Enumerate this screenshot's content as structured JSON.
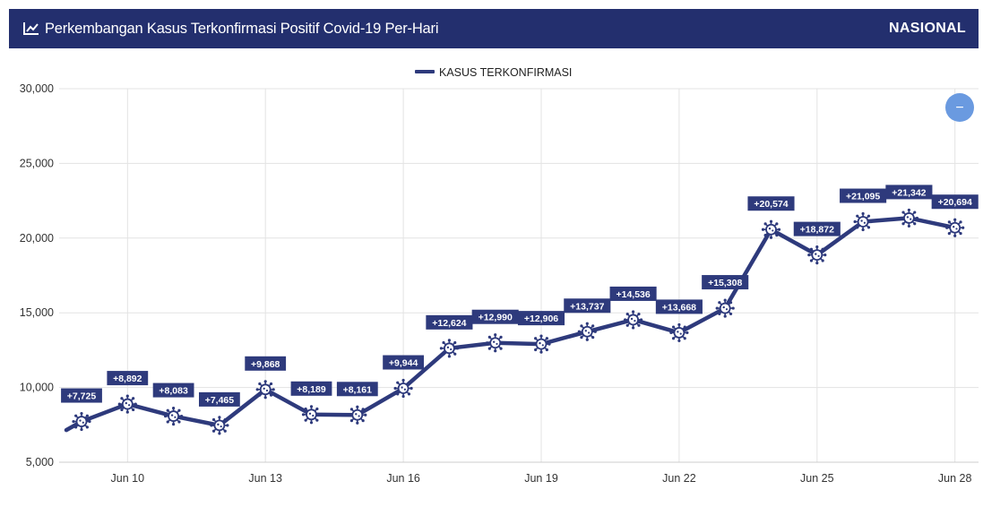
{
  "header": {
    "title": "Perkembangan Kasus Terkonfirmasi Positif Covid-19 Per-Hari",
    "region": "NASIONAL",
    "icon": "line-chart-icon"
  },
  "controls": {
    "collapse_icon": "minus-icon",
    "collapse_glyph": "−"
  },
  "colors": {
    "header_bg": "#232f6e",
    "series": "#2e3a7c",
    "label_bg": "#2e3a7c",
    "grid": "#e3e3e3",
    "button": "#6a9ae0"
  },
  "chart_data": {
    "type": "line",
    "title": "",
    "xlabel": "",
    "ylabel": "",
    "ylim": [
      5000,
      30000
    ],
    "yticks": [
      5000,
      10000,
      15000,
      20000,
      25000,
      30000
    ],
    "ytick_labels": [
      "5,000",
      "10,000",
      "15,000",
      "20,000",
      "25,000",
      "30,000"
    ],
    "x": [
      "Jun 9",
      "Jun 10",
      "Jun 11",
      "Jun 12",
      "Jun 13",
      "Jun 14",
      "Jun 15",
      "Jun 16",
      "Jun 17",
      "Jun 18",
      "Jun 19",
      "Jun 20",
      "Jun 21",
      "Jun 22",
      "Jun 23",
      "Jun 24",
      "Jun 25",
      "Jun 26",
      "Jun 27",
      "Jun 28"
    ],
    "xtick_labels": [
      "Jun 10",
      "Jun 13",
      "Jun 16",
      "Jun 19",
      "Jun 22",
      "Jun 25",
      "Jun 28"
    ],
    "grid": true,
    "legend_position": "top-center",
    "leading_value": 7150,
    "series": [
      {
        "name": "KASUS TERKONFIRMASI",
        "values": [
          7725,
          8892,
          8083,
          7465,
          9868,
          8189,
          8161,
          9944,
          12624,
          12990,
          12906,
          13737,
          14536,
          13668,
          15308,
          20574,
          18872,
          21095,
          21342,
          20694
        ],
        "labels": [
          "+7,725",
          "+8,892",
          "+8,083",
          "+7,465",
          "+9,868",
          "+8,189",
          "+8,161",
          "+9,944",
          "+12,624",
          "+12,990",
          "+12,906",
          "+13,737",
          "+14,536",
          "+13,668",
          "+15,308",
          "+20,574",
          "+18,872",
          "+21,095",
          "+21,342",
          "+20,694"
        ]
      }
    ]
  }
}
